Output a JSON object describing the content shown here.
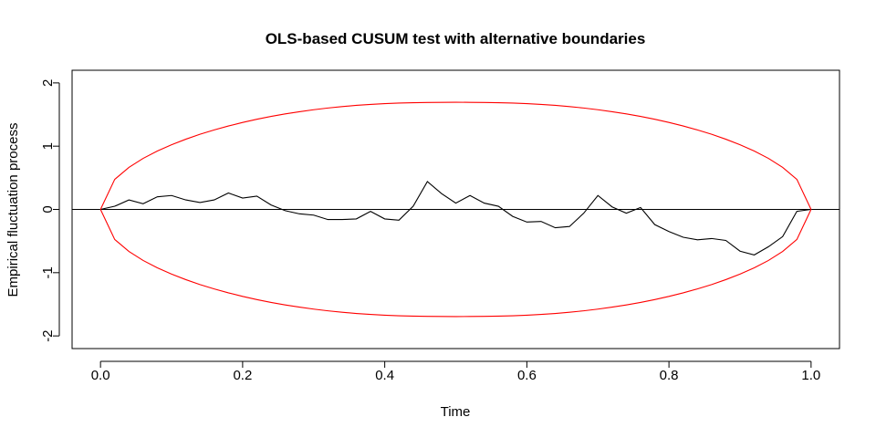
{
  "chart_data": {
    "type": "line",
    "title": "OLS-based CUSUM test with alternative boundaries",
    "xlabel": "Time",
    "ylabel": "Empirical fluctuation process",
    "xlim": [
      -0.04,
      1.04
    ],
    "ylim": [
      -2.2,
      2.2
    ],
    "x_ticks": [
      0.0,
      0.2,
      0.4,
      0.6,
      0.8,
      1.0
    ],
    "x_tick_labels": [
      "0.0",
      "0.2",
      "0.4",
      "0.6",
      "0.8",
      "1.0"
    ],
    "y_ticks": [
      -2,
      -1,
      0,
      1,
      2
    ],
    "y_tick_labels": [
      "-2",
      "-1",
      "0",
      "1",
      "2"
    ],
    "grid": false,
    "reference_line": {
      "y": 0,
      "color": "#000000"
    },
    "series": [
      {
        "color": "#000000",
        "x": [
          0.0,
          0.02,
          0.04,
          0.06,
          0.08,
          0.1,
          0.12,
          0.14,
          0.16,
          0.18,
          0.2,
          0.22,
          0.24,
          0.26,
          0.28,
          0.3,
          0.32,
          0.34,
          0.36,
          0.38,
          0.4,
          0.42,
          0.44,
          0.46,
          0.48,
          0.5,
          0.52,
          0.54,
          0.56,
          0.58,
          0.6,
          0.62,
          0.64,
          0.66,
          0.68,
          0.7,
          0.72,
          0.74,
          0.76,
          0.78,
          0.8,
          0.82,
          0.84,
          0.86,
          0.88,
          0.9,
          0.92,
          0.94,
          0.96,
          0.98,
          1.0
        ],
        "y": [
          0.0,
          0.05,
          0.15,
          0.09,
          0.2,
          0.22,
          0.15,
          0.11,
          0.15,
          0.26,
          0.18,
          0.21,
          0.07,
          -0.02,
          -0.07,
          -0.09,
          -0.16,
          -0.16,
          -0.15,
          -0.03,
          -0.15,
          -0.17,
          0.05,
          0.44,
          0.25,
          0.1,
          0.22,
          0.1,
          0.05,
          -0.11,
          -0.2,
          -0.19,
          -0.29,
          -0.27,
          -0.06,
          0.22,
          0.04,
          -0.06,
          0.03,
          -0.24,
          -0.35,
          -0.44,
          -0.48,
          -0.46,
          -0.49,
          -0.66,
          -0.72,
          -0.59,
          -0.43,
          -0.03,
          0.0
        ]
      },
      {
        "color": "#ff0000",
        "x": [
          0.0,
          0.02,
          0.04,
          0.06,
          0.08,
          0.1,
          0.12,
          0.14,
          0.16,
          0.18,
          0.2,
          0.22,
          0.24,
          0.26,
          0.28,
          0.3,
          0.32,
          0.34,
          0.36,
          0.38,
          0.4,
          0.42,
          0.44,
          0.46,
          0.48,
          0.5,
          0.52,
          0.54,
          0.56,
          0.58,
          0.6,
          0.62,
          0.64,
          0.66,
          0.68,
          0.7,
          0.72,
          0.74,
          0.76,
          0.78,
          0.8,
          0.82,
          0.84,
          0.86,
          0.88,
          0.9,
          0.92,
          0.94,
          0.96,
          0.98,
          1.0
        ],
        "y": [
          0.0,
          0.475,
          0.665,
          0.807,
          0.924,
          1.023,
          1.11,
          1.188,
          1.257,
          1.319,
          1.375,
          1.425,
          1.47,
          1.51,
          1.545,
          1.576,
          1.603,
          1.626,
          1.645,
          1.66,
          1.672,
          1.681,
          1.687,
          1.691,
          1.693,
          1.694,
          1.693,
          1.691,
          1.687,
          1.681,
          1.672,
          1.66,
          1.645,
          1.626,
          1.603,
          1.576,
          1.545,
          1.51,
          1.47,
          1.425,
          1.375,
          1.319,
          1.257,
          1.188,
          1.11,
          1.023,
          0.924,
          0.807,
          0.665,
          0.475,
          0.0
        ]
      },
      {
        "color": "#ff0000",
        "x": [
          0.0,
          0.02,
          0.04,
          0.06,
          0.08,
          0.1,
          0.12,
          0.14,
          0.16,
          0.18,
          0.2,
          0.22,
          0.24,
          0.26,
          0.28,
          0.3,
          0.32,
          0.34,
          0.36,
          0.38,
          0.4,
          0.42,
          0.44,
          0.46,
          0.48,
          0.5,
          0.52,
          0.54,
          0.56,
          0.58,
          0.6,
          0.62,
          0.64,
          0.66,
          0.68,
          0.7,
          0.72,
          0.74,
          0.76,
          0.78,
          0.8,
          0.82,
          0.84,
          0.86,
          0.88,
          0.9,
          0.92,
          0.94,
          0.96,
          0.98,
          1.0
        ],
        "y": [
          0.0,
          -0.475,
          -0.665,
          -0.807,
          -0.924,
          -1.023,
          -1.11,
          -1.188,
          -1.257,
          -1.319,
          -1.375,
          -1.425,
          -1.47,
          -1.51,
          -1.545,
          -1.576,
          -1.603,
          -1.626,
          -1.645,
          -1.66,
          -1.672,
          -1.681,
          -1.687,
          -1.691,
          -1.693,
          -1.694,
          -1.693,
          -1.691,
          -1.687,
          -1.681,
          -1.672,
          -1.66,
          -1.645,
          -1.626,
          -1.603,
          -1.576,
          -1.545,
          -1.51,
          -1.47,
          -1.425,
          -1.375,
          -1.319,
          -1.257,
          -1.188,
          -1.11,
          -1.023,
          -0.924,
          -0.807,
          -0.665,
          -0.475,
          0.0
        ]
      }
    ]
  }
}
